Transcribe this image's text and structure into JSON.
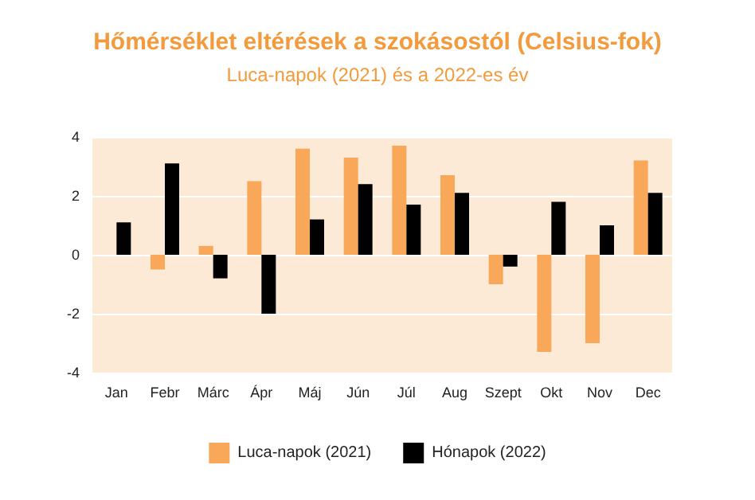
{
  "chart_data": {
    "type": "bar",
    "title": "Hőmérséklet eltérések a szokásostól (Celsius-fok)",
    "subtitle": "Luca-napok (2021) és a 2022-es év",
    "categories": [
      "Jan",
      "Febr",
      "Márc",
      "Ápr",
      "Máj",
      "Jún",
      "Júl",
      "Aug",
      "Szept",
      "Okt",
      "Nov",
      "Dec"
    ],
    "series": [
      {
        "name": "Luca-napok (2021)",
        "color": "#f9a85a",
        "values": [
          null,
          -0.5,
          0.3,
          2.5,
          3.6,
          3.3,
          3.7,
          2.7,
          -1.0,
          -3.3,
          -3.0,
          3.2
        ]
      },
      {
        "name": "Hónapok (2022)",
        "color": "#000000",
        "values": [
          1.1,
          3.1,
          -0.8,
          -2.0,
          1.2,
          2.4,
          1.7,
          2.1,
          -0.4,
          1.8,
          1.0,
          2.1
        ]
      }
    ],
    "ylim": [
      -4,
      4
    ],
    "yticks": [
      -4,
      -2,
      0,
      2,
      4
    ],
    "grid": "y",
    "legend": "bottom"
  }
}
